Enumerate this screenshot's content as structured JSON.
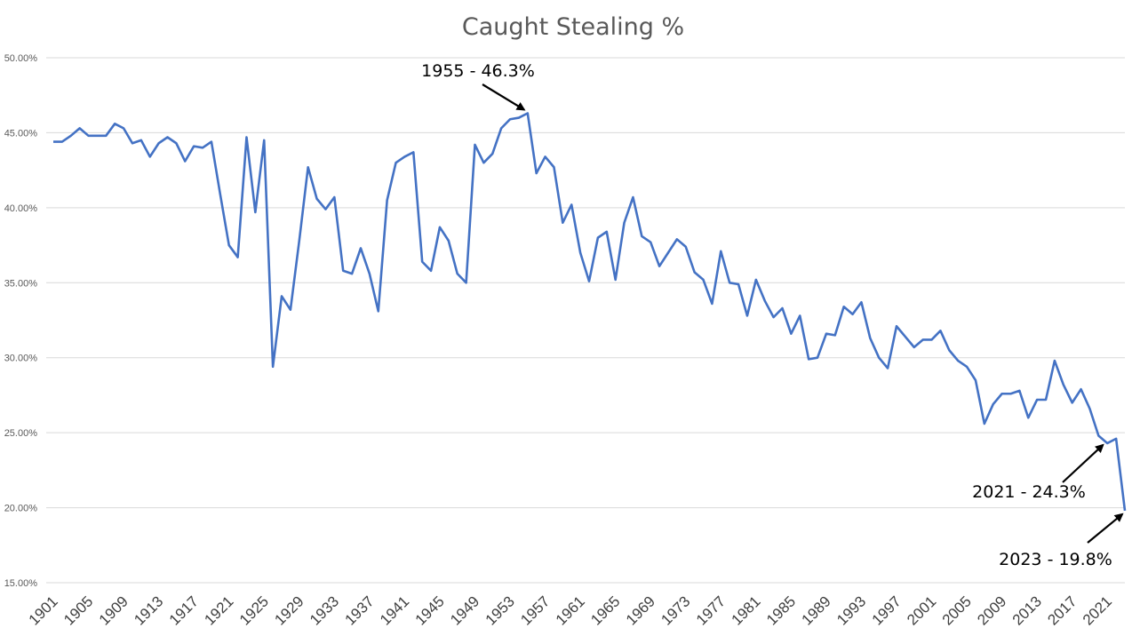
{
  "chart_data": {
    "type": "line",
    "title": "Caught Stealing %",
    "xlabel": "",
    "ylabel": "",
    "ylim": [
      0.15,
      0.5
    ],
    "y_ticks": [
      0.15,
      0.2,
      0.25,
      0.3,
      0.35,
      0.4,
      0.45,
      0.5
    ],
    "y_tick_labels": [
      "15.00%",
      "20.00%",
      "25.00%",
      "30.00%",
      "35.00%",
      "40.00%",
      "45.00%",
      "50.00%"
    ],
    "x_tick_labels": [
      "1901",
      "1905",
      "1909",
      "1913",
      "1917",
      "1921",
      "1925",
      "1929",
      "1933",
      "1937",
      "1941",
      "1945",
      "1949",
      "1953",
      "1957",
      "1961",
      "1965",
      "1969",
      "1973",
      "1977",
      "1981",
      "1985",
      "1989",
      "1993",
      "1997",
      "2001",
      "2005",
      "2009",
      "2013",
      "2017",
      "2021"
    ],
    "grid": true,
    "line_color": "#4472C4",
    "series": [
      {
        "name": "",
        "x_start": 1901,
        "values": [
          0.444,
          0.444,
          0.448,
          0.453,
          0.448,
          0.448,
          0.448,
          0.456,
          0.453,
          0.443,
          0.445,
          0.434,
          0.443,
          0.447,
          0.443,
          0.431,
          0.441,
          0.44,
          0.444,
          0.409,
          0.375,
          0.367,
          0.447,
          0.397,
          0.445,
          0.294,
          0.341,
          0.332,
          0.378,
          0.427,
          0.406,
          0.399,
          0.407,
          0.358,
          0.356,
          0.373,
          0.356,
          0.331,
          0.405,
          0.43,
          0.434,
          0.437,
          0.364,
          0.358,
          0.387,
          0.378,
          0.356,
          0.35,
          0.442,
          0.43,
          0.436,
          0.453,
          0.459,
          0.46,
          0.463,
          0.423,
          0.434,
          0.427,
          0.39,
          0.402,
          0.37,
          0.351,
          0.38,
          0.384,
          0.352,
          0.39,
          0.407,
          0.381,
          0.377,
          0.361,
          0.37,
          0.379,
          0.374,
          0.357,
          0.352,
          0.336,
          0.371,
          0.35,
          0.349,
          0.328,
          0.352,
          0.338,
          0.327,
          0.333,
          0.316,
          0.328,
          0.299,
          0.3,
          0.316,
          0.315,
          0.334,
          0.329,
          0.337,
          0.313,
          0.3,
          0.293,
          0.321,
          0.314,
          0.307,
          0.312,
          0.312,
          0.318,
          0.305,
          0.298,
          0.294,
          0.285,
          0.256,
          0.269,
          0.276,
          0.276,
          0.278,
          0.26,
          0.272,
          0.272,
          0.298,
          0.282,
          0.27,
          0.279,
          0.266,
          0.248,
          0.243,
          0.246,
          0.198
        ]
      }
    ],
    "annotations": [
      {
        "text": "1955 - 46.3%",
        "year": 1955,
        "value": 0.463
      },
      {
        "text": "2021 - 24.3%",
        "year": 2021,
        "value": 0.243
      },
      {
        "text": "2023 - 19.8%",
        "year": 2023,
        "value": 0.198
      }
    ]
  }
}
